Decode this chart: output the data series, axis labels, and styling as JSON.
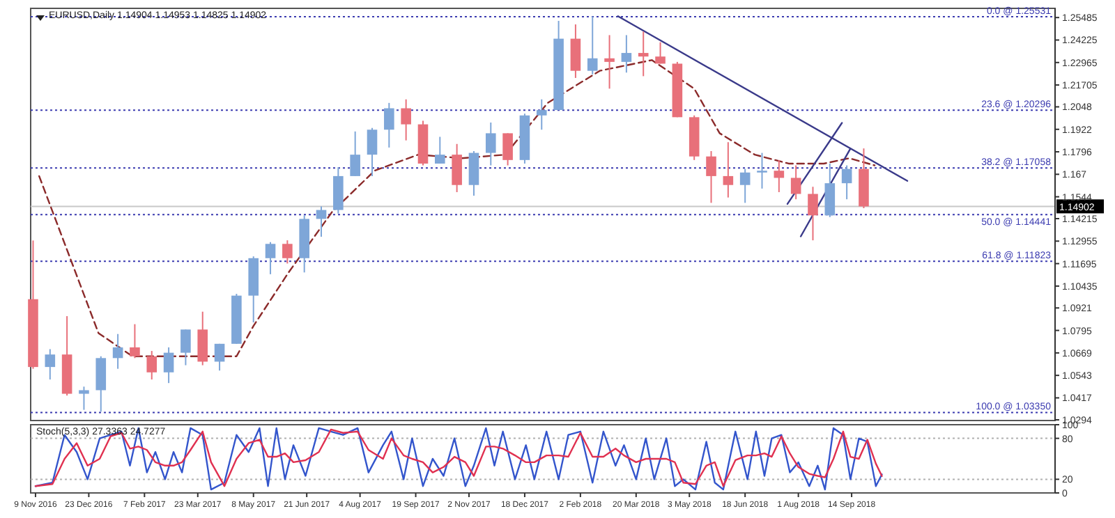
{
  "chart_data": [
    {
      "type": "candlestick",
      "title": "EURUSD,Daily 1.14904 1.14953 1.14825 1.14902",
      "tick_labels": "y",
      "x": [
        "2016-11-07",
        "2016-11-21",
        "2016-12-05",
        "2016-12-19",
        "2017-01-02",
        "2017-01-16",
        "2017-01-30",
        "2017-02-13",
        "2017-02-27",
        "2017-03-13",
        "2017-03-27",
        "2017-04-10",
        "2017-04-24",
        "2017-05-08",
        "2017-05-22",
        "2017-06-05",
        "2017-06-19",
        "2017-07-03",
        "2017-07-17",
        "2017-07-31",
        "2017-08-14",
        "2017-08-28",
        "2017-09-11",
        "2017-09-25",
        "2017-10-09",
        "2017-10-23",
        "2017-11-06",
        "2017-11-20",
        "2017-12-04",
        "2017-12-18",
        "2018-01-01",
        "2018-01-15",
        "2018-01-29",
        "2018-02-12",
        "2018-02-26",
        "2018-03-12",
        "2018-03-26",
        "2018-04-09",
        "2018-04-23",
        "2018-05-07",
        "2018-05-21",
        "2018-06-04",
        "2018-06-18",
        "2018-07-02",
        "2018-07-16",
        "2018-07-30",
        "2018-08-13",
        "2018-08-27",
        "2018-09-10",
        "2018-09-24"
      ],
      "ohlc": [
        [
          1.097,
          1.1299,
          1.058,
          1.059
        ],
        [
          1.059,
          1.069,
          1.052,
          1.066
        ],
        [
          1.066,
          1.0875,
          1.043,
          1.044
        ],
        [
          1.044,
          1.048,
          1.035,
          1.046
        ],
        [
          1.046,
          1.065,
          1.034,
          1.064
        ],
        [
          1.064,
          1.0775,
          1.058,
          1.07
        ],
        [
          1.07,
          1.083,
          1.064,
          1.065
        ],
        [
          1.065,
          1.068,
          1.052,
          1.056
        ],
        [
          1.056,
          1.07,
          1.05,
          1.067
        ],
        [
          1.067,
          1.08,
          1.06,
          1.08
        ],
        [
          1.08,
          1.09,
          1.06,
          1.062
        ],
        [
          1.062,
          1.072,
          1.057,
          1.072
        ],
        [
          1.072,
          1.1,
          1.072,
          1.099
        ],
        [
          1.099,
          1.121,
          1.084,
          1.12
        ],
        [
          1.12,
          1.129,
          1.111,
          1.128
        ],
        [
          1.128,
          1.13,
          1.117,
          1.12
        ],
        [
          1.12,
          1.144,
          1.112,
          1.142
        ],
        [
          1.142,
          1.149,
          1.132,
          1.147
        ],
        [
          1.147,
          1.171,
          1.145,
          1.166
        ],
        [
          1.166,
          1.191,
          1.166,
          1.178
        ],
        [
          1.178,
          1.193,
          1.166,
          1.192
        ],
        [
          1.192,
          1.207,
          1.182,
          1.204
        ],
        [
          1.204,
          1.209,
          1.186,
          1.195
        ],
        [
          1.195,
          1.197,
          1.172,
          1.173
        ],
        [
          1.173,
          1.188,
          1.173,
          1.178
        ],
        [
          1.178,
          1.184,
          1.157,
          1.161
        ],
        [
          1.161,
          1.18,
          1.155,
          1.179
        ],
        [
          1.179,
          1.196,
          1.172,
          1.19
        ],
        [
          1.19,
          1.19,
          1.172,
          1.175
        ],
        [
          1.175,
          1.201,
          1.173,
          1.2
        ],
        [
          1.2,
          1.209,
          1.192,
          1.203
        ],
        [
          1.203,
          1.253,
          1.203,
          1.243
        ],
        [
          1.243,
          1.251,
          1.221,
          1.225
        ],
        [
          1.225,
          1.2555,
          1.223,
          1.232
        ],
        [
          1.232,
          1.245,
          1.215,
          1.23
        ],
        [
          1.23,
          1.245,
          1.224,
          1.235
        ],
        [
          1.235,
          1.247,
          1.222,
          1.233
        ],
        [
          1.233,
          1.241,
          1.229,
          1.229
        ],
        [
          1.229,
          1.23,
          1.199,
          1.199
        ],
        [
          1.199,
          1.2,
          1.175,
          1.177
        ],
        [
          1.177,
          1.18,
          1.151,
          1.166
        ],
        [
          1.166,
          1.185,
          1.154,
          1.161
        ],
        [
          1.161,
          1.17,
          1.151,
          1.168
        ],
        [
          1.168,
          1.179,
          1.159,
          1.169
        ],
        [
          1.169,
          1.175,
          1.157,
          1.165
        ],
        [
          1.165,
          1.172,
          1.153,
          1.156
        ],
        [
          1.156,
          1.16,
          1.13,
          1.144
        ],
        [
          1.144,
          1.173,
          1.143,
          1.162
        ],
        [
          1.162,
          1.172,
          1.153,
          1.17
        ],
        [
          1.17,
          1.1815,
          1.148,
          1.149
        ]
      ],
      "colors": [
        "#e8707a",
        "#7ea6d8",
        "#e8707a",
        "#7ea6d8",
        "#7ea6d8",
        "#7ea6d8",
        "#e8707a",
        "#e8707a",
        "#7ea6d8",
        "#7ea6d8",
        "#e8707a",
        "#7ea6d8",
        "#7ea6d8",
        "#7ea6d8",
        "#7ea6d8",
        "#e8707a",
        "#7ea6d8",
        "#7ea6d8",
        "#7ea6d8",
        "#7ea6d8",
        "#7ea6d8",
        "#7ea6d8",
        "#e8707a",
        "#e8707a",
        "#7ea6d8",
        "#e8707a",
        "#7ea6d8",
        "#7ea6d8",
        "#e8707a",
        "#7ea6d8",
        "#7ea6d8",
        "#7ea6d8",
        "#e8707a",
        "#7ea6d8",
        "#e8707a",
        "#7ea6d8",
        "#e8707a",
        "#e8707a",
        "#e8707a",
        "#e8707a",
        "#e8707a",
        "#e8707a",
        "#7ea6d8",
        "#7ea6d8",
        "#e8707a",
        "#e8707a",
        "#e8707a",
        "#7ea6d8",
        "#7ea6d8",
        "#e8707a"
      ],
      "series": [
        {
          "type": "line",
          "color": "#8b2a2a",
          "line_style": "dashed",
          "x": [
            "2016-11-12",
            "2016-12-31",
            "2017-01-28",
            "2017-04-24",
            "2017-05-08",
            "2017-06-06",
            "2017-07-12",
            "2017-08-16",
            "2017-09-21",
            "2017-10-27",
            "2017-12-02",
            "2018-01-06",
            "2018-02-18",
            "2018-04-02",
            "2018-05-07",
            "2018-05-28",
            "2018-06-26",
            "2018-07-24",
            "2018-08-22",
            "2018-09-12",
            "2018-10-03"
          ],
          "values": [
            1.166,
            1.078,
            1.065,
            1.065,
            1.082,
            1.112,
            1.146,
            1.169,
            1.178,
            1.176,
            1.178,
            1.207,
            1.225,
            1.231,
            1.215,
            1.19,
            1.178,
            1.173,
            1.173,
            1.176,
            1.172
          ]
        },
        {
          "type": "line",
          "color": "#3a3a8a",
          "line_style": "solid",
          "x": [
            "2018-03-05",
            "2018-10-30"
          ],
          "values": [
            1.2556,
            1.1633
          ]
        },
        {
          "type": "line",
          "color": "#3a3a8a",
          "line_style": "solid",
          "x": [
            "2018-07-23",
            "2018-09-06"
          ],
          "values": [
            1.1504,
            1.1958
          ]
        },
        {
          "type": "line",
          "color": "#3a3a8a",
          "line_style": "solid",
          "x": [
            "2018-08-03",
            "2018-09-13"
          ],
          "values": [
            1.1322,
            1.1814
          ]
        }
      ],
      "xlim": [
        "2016-11-05",
        "2019-03-01"
      ],
      "ylim": [
        1.029,
        1.26
      ],
      "yticks": [
        1.25485,
        1.24225,
        1.22965,
        1.21705,
        1.2048,
        1.1922,
        1.1796,
        1.167,
        1.1544,
        1.14215,
        1.12955,
        1.11695,
        1.10435,
        1.0921,
        1.0795,
        1.0669,
        1.0543,
        1.0417,
        1.0294
      ],
      "ref_lines": [
        {
          "axis": "y",
          "value": 1.25531,
          "label": "0.0 @ 1.25531",
          "color": "#3b3bb0",
          "line_style": "dotted"
        },
        {
          "axis": "y",
          "value": 1.20296,
          "label": "23.6 @ 1.20296",
          "color": "#3b3bb0",
          "line_style": "dotted"
        },
        {
          "axis": "y",
          "value": 1.17058,
          "label": "38.2 @ 1.17058",
          "color": "#3b3bb0",
          "line_style": "dotted"
        },
        {
          "axis": "y",
          "value": 1.14441,
          "label": "50.0 @ 1.14441",
          "color": "#3b3bb0",
          "line_style": "dotted"
        },
        {
          "axis": "y",
          "value": 1.11823,
          "label": "61.8 @ 1.11823",
          "color": "#3b3bb0",
          "line_style": "dotted"
        },
        {
          "axis": "y",
          "value": 1.0335,
          "label": "100.0 @ 1.03350",
          "color": "#3b3bb0",
          "line_style": "dotted"
        },
        {
          "axis": "y",
          "value": 1.14902,
          "label": "1.14902",
          "color": "#c8c8c8",
          "line_style": "solid"
        }
      ]
    },
    {
      "type": "line",
      "title": "Stoch(5,3,3) 27.3363 24.7277",
      "series": [
        {
          "color": "#3355cc",
          "values": [
            10,
            15,
            85,
            60,
            20,
            80,
            85,
            90,
            40,
            95,
            30,
            60,
            20,
            60,
            30,
            95,
            85,
            5,
            15,
            85,
            60,
            95,
            10,
            95,
            20,
            70,
            25,
            95,
            90,
            85,
            95,
            30,
            70,
            90,
            20,
            80,
            10,
            50,
            25,
            80,
            10,
            40,
            95,
            40,
            90,
            20,
            70,
            20,
            90,
            20,
            85,
            90,
            15,
            90,
            40,
            70,
            20,
            80,
            20,
            80,
            10,
            20,
            5,
            75,
            15,
            5,
            90,
            20,
            90,
            25,
            80,
            85,
            30,
            45,
            10,
            40,
            5,
            95,
            85,
            20,
            80,
            75,
            10,
            27.3363
          ]
        },
        {
          "color": "#e03050",
          "values": [
            10,
            13,
            50,
            73,
            40,
            50,
            83,
            88,
            65,
            68,
            63,
            45,
            40,
            40,
            45,
            63,
            90,
            45,
            10,
            50,
            73,
            78,
            53,
            53,
            58,
            45,
            48,
            60,
            93,
            88,
            90,
            63,
            50,
            80,
            55,
            50,
            45,
            30,
            38,
            53,
            45,
            25,
            68,
            68,
            65,
            55,
            45,
            45,
            55,
            55,
            53,
            88,
            53,
            53,
            65,
            55,
            45,
            50,
            50,
            50,
            45,
            15,
            13,
            40,
            45,
            10,
            48,
            55,
            55,
            58,
            53,
            83,
            58,
            38,
            28,
            25,
            23,
            50,
            90,
            53,
            50,
            78,
            43,
            24.7277
          ]
        }
      ],
      "x": [
        "2016-11-09",
        "2016-11-23",
        "2016-12-03",
        "2016-12-13",
        "2016-12-22",
        "2017-01-01",
        "2017-01-10",
        "2017-01-19",
        "2017-01-26",
        "2017-02-02",
        "2017-02-09",
        "2017-02-16",
        "2017-02-24",
        "2017-03-03",
        "2017-03-10",
        "2017-03-17",
        "2017-03-27",
        "2017-04-03",
        "2017-04-14",
        "2017-04-24",
        "2017-05-04",
        "2017-05-13",
        "2017-05-20",
        "2017-05-27",
        "2017-06-03",
        "2017-06-10",
        "2017-06-20",
        "2017-07-01",
        "2017-07-11",
        "2017-07-21",
        "2017-08-02",
        "2017-08-11",
        "2017-08-23",
        "2017-08-30",
        "2017-09-09",
        "2017-09-16",
        "2017-09-25",
        "2017-10-03",
        "2017-10-12",
        "2017-10-21",
        "2017-10-30",
        "2017-11-06",
        "2017-11-16",
        "2017-11-23",
        "2017-11-30",
        "2017-12-10",
        "2017-12-19",
        "2017-12-26",
        "2018-01-05",
        "2018-01-15",
        "2018-01-23",
        "2018-02-02",
        "2018-02-12",
        "2018-02-21",
        "2018-03-03",
        "2018-03-10",
        "2018-03-20",
        "2018-03-28",
        "2018-04-04",
        "2018-04-14",
        "2018-04-21",
        "2018-04-28",
        "2018-05-08",
        "2018-05-17",
        "2018-05-24",
        "2018-05-31",
        "2018-06-10",
        "2018-06-20",
        "2018-06-27",
        "2018-07-04",
        "2018-07-10",
        "2018-07-18",
        "2018-07-25",
        "2018-08-01",
        "2018-08-10",
        "2018-08-17",
        "2018-08-23",
        "2018-08-30",
        "2018-09-07",
        "2018-09-13",
        "2018-09-20",
        "2018-09-27",
        "2018-10-04",
        "2018-10-09"
      ],
      "xlim": [
        "2016-11-05",
        "2019-03-01"
      ],
      "xticks": [
        {
          "value": "2016-11-09",
          "label": "9 Nov 2016"
        },
        {
          "value": "2016-12-23",
          "label": "23 Dec 2016"
        },
        {
          "value": "2017-02-07",
          "label": "7 Feb 2017"
        },
        {
          "value": "2017-03-23",
          "label": "23 Mar 2017"
        },
        {
          "value": "2017-05-08",
          "label": "8 May 2017"
        },
        {
          "value": "2017-06-21",
          "label": "21 Jun 2017"
        },
        {
          "value": "2017-08-04",
          "label": "4 Aug 2017"
        },
        {
          "value": "2017-09-19",
          "label": "19 Sep 2017"
        },
        {
          "value": "2017-11-02",
          "label": "2 Nov 2017"
        },
        {
          "value": "2017-12-18",
          "label": "18 Dec 2017"
        },
        {
          "value": "2018-02-02",
          "label": "2 Feb 2018"
        },
        {
          "value": "2018-03-20",
          "label": "20 Mar 2018"
        },
        {
          "value": "2018-05-03",
          "label": "3 May 2018"
        },
        {
          "value": "2018-06-18",
          "label": "18 Jun 2018"
        },
        {
          "value": "2018-08-01",
          "label": "1 Aug 2018"
        },
        {
          "value": "2018-09-14",
          "label": "14 Sep 2018"
        }
      ],
      "ylim": [
        0,
        100
      ],
      "yticks": [
        0,
        20,
        80,
        100
      ],
      "ref_lines": [
        {
          "axis": "y",
          "value": 80,
          "color": "#b0b0b0",
          "line_style": "dotted"
        },
        {
          "axis": "y",
          "value": 20,
          "color": "#b0b0b0",
          "line_style": "dotted"
        }
      ]
    }
  ]
}
